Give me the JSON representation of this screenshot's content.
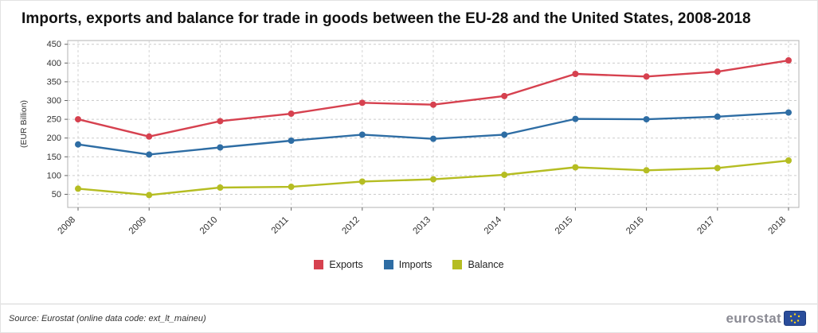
{
  "title": "Imports, exports and balance for trade in goods between the EU-28 and the United States, 2008-2018",
  "chart_data": {
    "type": "line",
    "x": [
      2008,
      2009,
      2010,
      2011,
      2012,
      2013,
      2014,
      2015,
      2016,
      2017,
      2018
    ],
    "series": [
      {
        "name": "Exports",
        "color": "#d6414f",
        "values": [
          250,
          204,
          245,
          265,
          294,
          289,
          312,
          371,
          364,
          377,
          407
        ]
      },
      {
        "name": "Imports",
        "color": "#2e6da4",
        "values": [
          183,
          156,
          175,
          193,
          209,
          198,
          209,
          251,
          250,
          257,
          268
        ]
      },
      {
        "name": "Balance",
        "color": "#b5bd22",
        "values": [
          65,
          48,
          68,
          70,
          84,
          90,
          102,
          122,
          114,
          120,
          140
        ]
      }
    ],
    "title": "Imports, exports and balance for trade in goods between the EU-28 and the United States, 2008-2018",
    "xlabel": "",
    "ylabel": "(EUR Billion)",
    "yticks": [
      50,
      100,
      150,
      200,
      250,
      300,
      350,
      400,
      450
    ],
    "ylim": [
      15,
      460
    ],
    "grid": true,
    "legend_position": "bottom"
  },
  "footer": {
    "source": "Source: Eurostat (online data code: ext_lt_maineu)",
    "logo_text": "eurostat"
  }
}
